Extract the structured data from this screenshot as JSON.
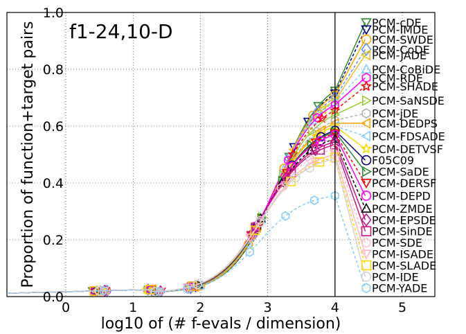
{
  "chart_data": {
    "type": "line",
    "annotation": "f1-24,10-D",
    "xlabel": "log10 of (# f-evals / dimension)",
    "ylabel": "Proportion of function+target pairs",
    "xlim": [
      -0.85,
      5.45
    ],
    "ylim": [
      0,
      1
    ],
    "xticks": [
      "0",
      "1",
      "2",
      "3",
      "4",
      "5"
    ],
    "yticks": [
      "0.0",
      "0.2",
      "0.4",
      "0.6",
      "0.8",
      "1.0"
    ],
    "budget_line_x": 4,
    "grid": true,
    "legend_position": "right",
    "series": [
      {
        "name": "PCM-cDE",
        "color": "#2e8b2e",
        "dash": "",
        "marker": "tri_down_thin",
        "final": 0.965
      },
      {
        "name": "PCM-IMDE",
        "color": "#000080",
        "dash": "4,3",
        "marker": "tri_down",
        "final": 0.94
      },
      {
        "name": "PCM-SWDE",
        "color": "#ffa500",
        "dash": "",
        "marker": "circle",
        "final": 0.905
      },
      {
        "name": "PCM-CoDE",
        "color": "#6495ed",
        "dash": "4,3",
        "marker": "diamond",
        "final": 0.87
      },
      {
        "name": "PCM-JADE",
        "color": "#e8c31e",
        "dash": "",
        "marker": "tri_left",
        "final": 0.85
      },
      {
        "name": "PCM-CoBiDE",
        "color": "#87cefa",
        "dash": "4,3",
        "marker": "tri_up",
        "final": 0.8
      },
      {
        "name": "PCM-RDE",
        "color": "#ff00ff",
        "dash": "",
        "marker": "hexagon",
        "final": 0.77
      },
      {
        "name": "PCM-SHADE",
        "color": "#ff0000",
        "dash": "4,3",
        "marker": "star",
        "final": 0.74
      },
      {
        "name": "PCM-SaNSDE",
        "color": "#9acd32",
        "dash": "",
        "marker": "tri_right",
        "final": 0.69
      },
      {
        "name": "PCM-jDE",
        "color": "#b0b0b0",
        "dash": "4,3",
        "marker": "hexagon",
        "final": 0.645
      },
      {
        "name": "PCM-DEDPS",
        "color": "#ffa500",
        "dash": "",
        "marker": "tri_left",
        "final": 0.61
      },
      {
        "name": "PCM-FDSADE",
        "color": "#87cefa",
        "dash": "4,3",
        "marker": "tri_left",
        "final": 0.565
      },
      {
        "name": "PCM-DETVSF",
        "color": "#ffd700",
        "dash": "",
        "marker": "star",
        "final": 0.52
      },
      {
        "name": "F05C09",
        "color": "#000080",
        "dash": "",
        "marker": "circle",
        "final": 0.48
      },
      {
        "name": "PCM-SaDE",
        "color": "#2e8b2e",
        "dash": "",
        "marker": "tri_right_thin",
        "final": 0.44
      },
      {
        "name": "PCM-DERSF",
        "color": "#ff0000",
        "dash": "4,3",
        "marker": "tri_down",
        "final": 0.4
      },
      {
        "name": "PCM-DEPD",
        "color": "#ff00ff",
        "dash": "",
        "marker": "circle",
        "final": 0.355
      },
      {
        "name": "PCM-ZMDE",
        "color": "#000000",
        "dash": "4,3",
        "marker": "tri_up",
        "final": 0.31
      },
      {
        "name": "PCM-EPSDE",
        "color": "#c71585",
        "dash": "",
        "marker": "diamond",
        "final": 0.27
      },
      {
        "name": "PCM-SinDE",
        "color": "#c71585",
        "dash": "",
        "marker": "square",
        "final": 0.23
      },
      {
        "name": "PCM-SDE",
        "color": "#ffc0cb",
        "dash": "4,3",
        "marker": "hexagon",
        "final": 0.19
      },
      {
        "name": "PCM-ISADE",
        "color": "#ffb6c1",
        "dash": "",
        "marker": "tri_down",
        "final": 0.15
      },
      {
        "name": "PCM-SLADE",
        "color": "#ffd700",
        "dash": "4,3",
        "marker": "square",
        "final": 0.11
      },
      {
        "name": "PCM-IDE",
        "color": "#d3d3d3",
        "dash": "",
        "marker": "circle",
        "final": 0.07
      },
      {
        "name": "PCM-YADE",
        "color": "#87cefa",
        "dash": "4,3",
        "marker": "hexagon",
        "final": 0.03
      }
    ],
    "at_budget": [
      0.725,
      0.715,
      0.71,
      0.7,
      0.69,
      0.685,
      0.675,
      0.655,
      0.64,
      0.62,
      0.61,
      0.6,
      0.6,
      0.585,
      0.58,
      0.575,
      0.57,
      0.555,
      0.545,
      0.535,
      0.52,
      0.5,
      0.49,
      0.485,
      0.355
    ]
  }
}
